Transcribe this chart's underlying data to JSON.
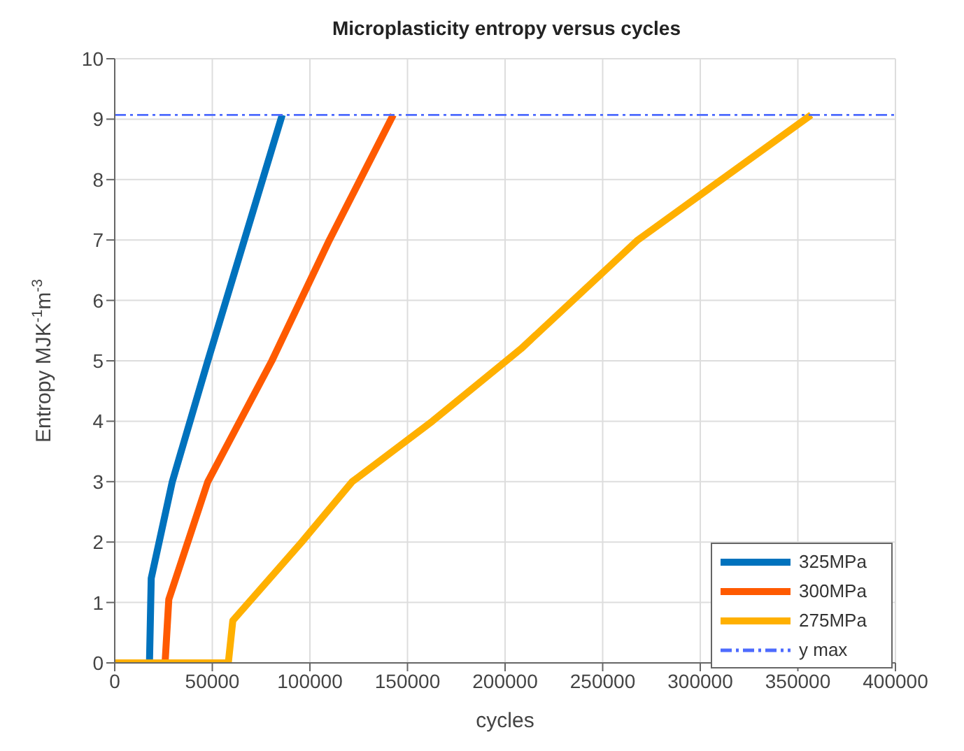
{
  "chart_data": {
    "type": "line",
    "title": "Microplasticity entropy versus cycles",
    "xlabel": "cycles",
    "ylabel": "Entropy MJK$^{-1}$m$^{-3}$",
    "xlim": [
      0,
      400000
    ],
    "xticks": [
      0,
      50000,
      100000,
      150000,
      200000,
      250000,
      300000,
      350000,
      400000
    ],
    "ylim": [
      0,
      10
    ],
    "yticks": [
      0,
      1,
      2,
      3,
      4,
      5,
      6,
      7,
      8,
      9,
      10
    ],
    "grid": true,
    "legend": "bottom right",
    "marker": "none",
    "line_style": "solid",
    "series": [
      {
        "name": "325MPa",
        "color": "#0072bd",
        "x": [
          17800,
          18700,
          29500,
          47700,
          66400,
          85800
        ],
        "values": [
          0,
          1.4,
          3,
          5,
          7,
          9.07
        ]
      },
      {
        "name": "300MPa",
        "color": "#ff5a00",
        "x": [
          25800,
          27700,
          47700,
          80500,
          110000,
          142700
        ],
        "values": [
          0,
          1.05,
          3,
          5,
          7,
          9.07
        ]
      },
      {
        "name": "275MPa",
        "color": "#ffb000",
        "x": [
          0,
          58200,
          60500,
          95800,
          121700,
          162700,
          208200,
          268000,
          356800
        ],
        "values": [
          0,
          0,
          0.7,
          2,
          3,
          4,
          5.2,
          7,
          9.07
        ]
      },
      {
        "name": "y max",
        "color": "#4d6bfe",
        "line_style": "dashed",
        "x": [
          0,
          400000
        ],
        "values": [
          9.07,
          9.07
        ]
      }
    ]
  }
}
